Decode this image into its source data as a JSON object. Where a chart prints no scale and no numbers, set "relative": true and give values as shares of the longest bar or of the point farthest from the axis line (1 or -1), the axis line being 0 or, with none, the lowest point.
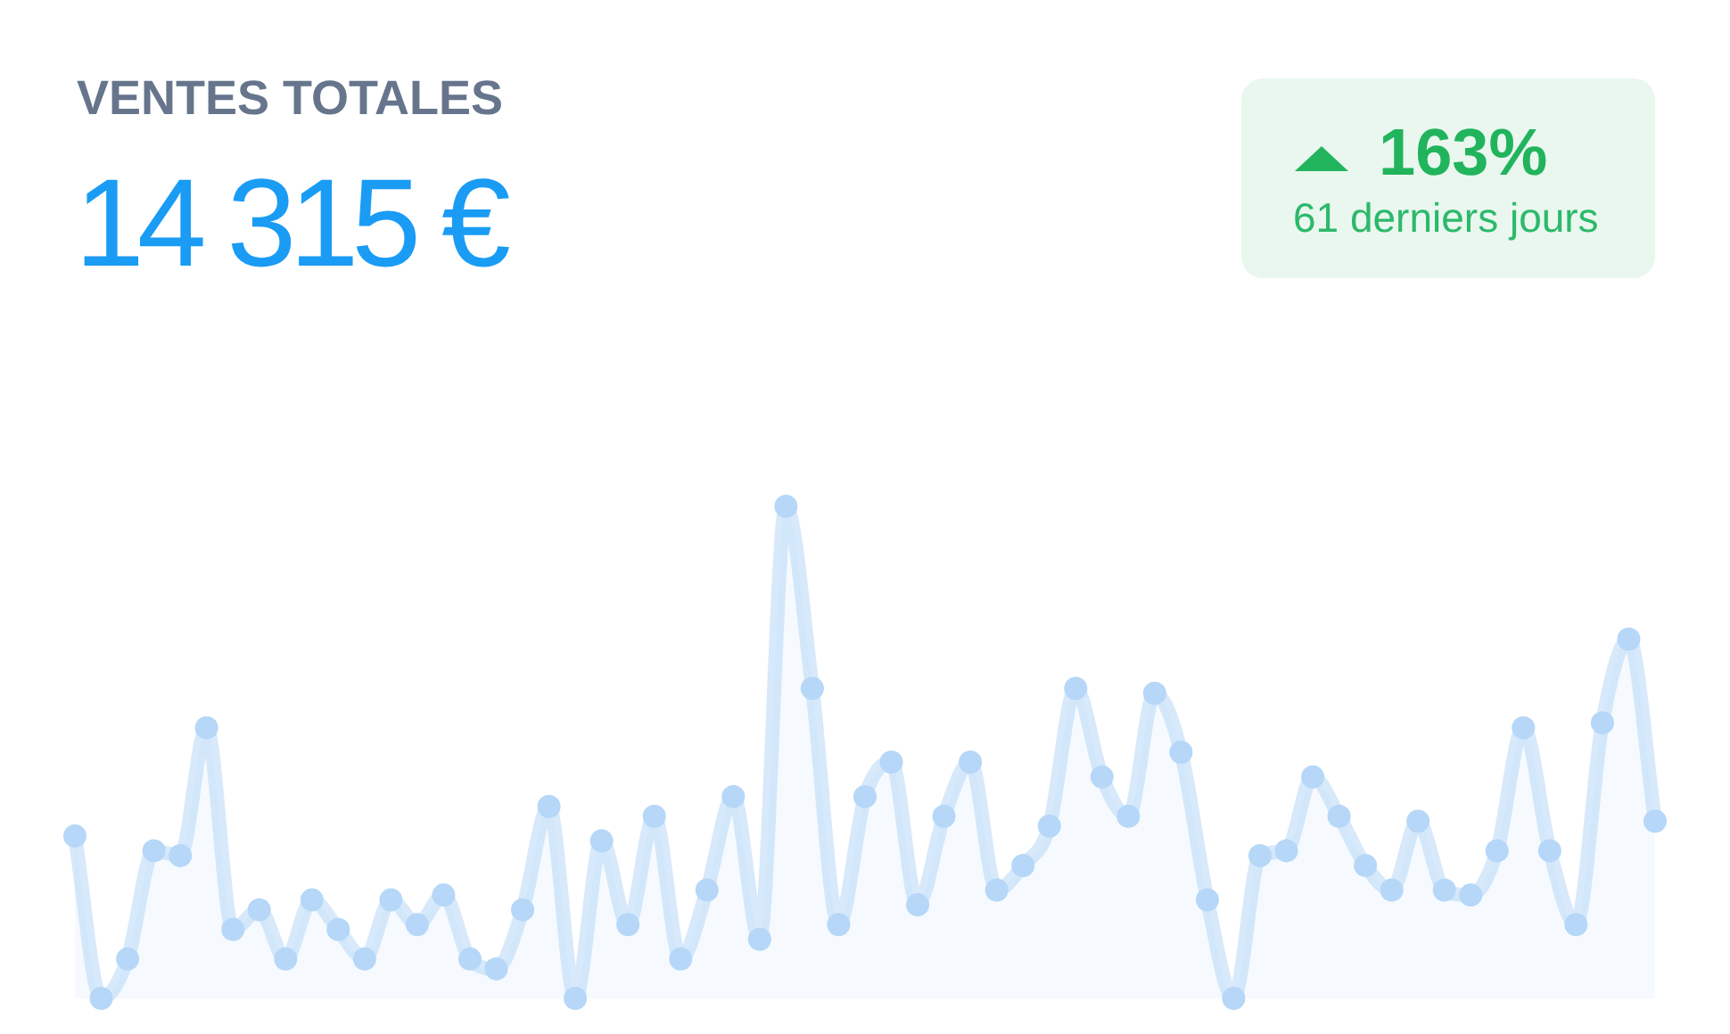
{
  "chart_data": {
    "type": "area",
    "title": "VENTES TOTALES",
    "subtitle": "14 315 €",
    "annotations": [
      "163%",
      "61 derniers jours"
    ],
    "categories": [
      null,
      null,
      null,
      null,
      null,
      null,
      null,
      null,
      null,
      null,
      null,
      null,
      null,
      null,
      null,
      null,
      null,
      null,
      null,
      null,
      null,
      null,
      null,
      null,
      null,
      null,
      null,
      null,
      null,
      null,
      null,
      null,
      null,
      null,
      null,
      null,
      null,
      null,
      null,
      null,
      null,
      null,
      null,
      null,
      null,
      null,
      null,
      null,
      null,
      null,
      null,
      null,
      null,
      null,
      null,
      null,
      null,
      null,
      null,
      null,
      null
    ],
    "relative": true,
    "marker": "circle",
    "series": [
      {
        "color": "#b6d7f7",
        "values": [
          0.33,
          0,
          0.08,
          0.3,
          0.29,
          0.55,
          0.14,
          0.18,
          0.08,
          0.2,
          0.14,
          0.08,
          0.2,
          0.15,
          0.21,
          0.08,
          0.06,
          0.18,
          0.39,
          0,
          0.32,
          0.15,
          0.37,
          0.08,
          0.22,
          0.41,
          0.12,
          1,
          0.63,
          0.15,
          0.41,
          0.48,
          0.19,
          0.37,
          0.48,
          0.22,
          0.27,
          0.35,
          0.63,
          0.45,
          0.37,
          0.62,
          0.5,
          0.2,
          0,
          0.29,
          0.3,
          0.45,
          0.37,
          0.27,
          0.22,
          0.36,
          0.22,
          0.21,
          0.3,
          0.55,
          0.3,
          0.15,
          0.56,
          0.73,
          0.36
        ]
      }
    ]
  }
}
